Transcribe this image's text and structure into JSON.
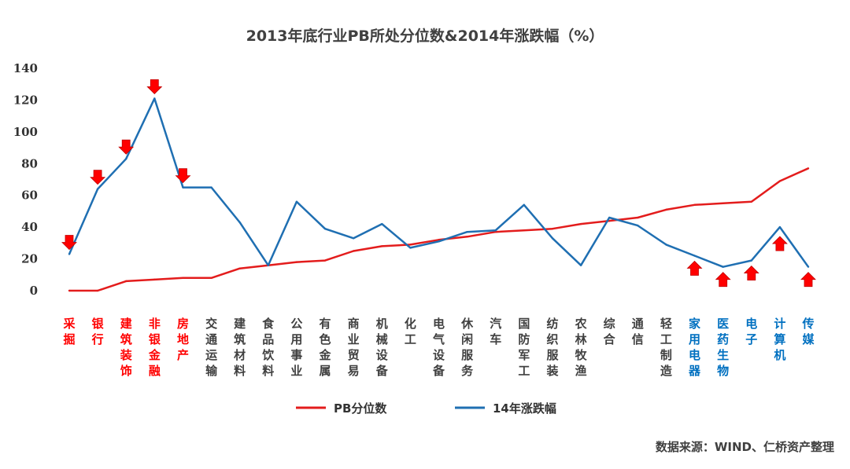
{
  "chart_data": {
    "type": "line",
    "title": "2013年底行业PB所处分位数&2014年涨跌幅（%）",
    "categories": [
      "采掘",
      "银行",
      "建筑装饰",
      "非银金融",
      "房地产",
      "交通运输",
      "建筑材料",
      "食品饮料",
      "公用事业",
      "有色金属",
      "商业贸易",
      "机械设备",
      "化工",
      "电气设备",
      "休闲服务",
      "汽车",
      "国防军工",
      "纺织服装",
      "农林牧渔",
      "综合",
      "通信",
      "轻工制造",
      "家用电器",
      "医药生物",
      "电子",
      "计算机",
      "传媒"
    ],
    "category_colors": [
      "red",
      "red",
      "red",
      "red",
      "red",
      "dark",
      "dark",
      "dark",
      "dark",
      "dark",
      "dark",
      "dark",
      "dark",
      "dark",
      "dark",
      "dark",
      "dark",
      "dark",
      "dark",
      "dark",
      "dark",
      "dark",
      "blue",
      "blue",
      "blue",
      "blue",
      "blue"
    ],
    "series": [
      {
        "name": "PB分位数",
        "color": "#e31c1c",
        "values": [
          0,
          0,
          6,
          7,
          8,
          8,
          14,
          16,
          18,
          19,
          25,
          28,
          29,
          32,
          34,
          37,
          38,
          39,
          42,
          44,
          46,
          51,
          54,
          55,
          56,
          69,
          77
        ]
      },
      {
        "name": "14年涨跌幅",
        "color": "#1f6fb2",
        "values": [
          23,
          64,
          83,
          121,
          65,
          65,
          43,
          16,
          56,
          39,
          33,
          42,
          27,
          31,
          37,
          38,
          54,
          33,
          16,
          46,
          41,
          29,
          22,
          15,
          19,
          40,
          15
        ]
      }
    ],
    "ylim": [
      0,
      140
    ],
    "yticks": [
      0,
      20,
      40,
      60,
      80,
      100,
      120,
      140
    ],
    "grid": false,
    "legend_position": "bottom",
    "annotations": {
      "down_arrows": [
        "采掘",
        "银行",
        "建筑装饰",
        "非银金融",
        "房地产"
      ],
      "up_arrows": [
        "家用电器",
        "医药生物",
        "电子",
        "计算机",
        "传媒"
      ],
      "arrow_color": "#ff0000"
    },
    "colors": {
      "red_label": "#ff0000",
      "blue_label": "#0070c0",
      "dark_label": "#404040"
    }
  },
  "source_note": "数据来源：WIND、仁桥资产整理"
}
